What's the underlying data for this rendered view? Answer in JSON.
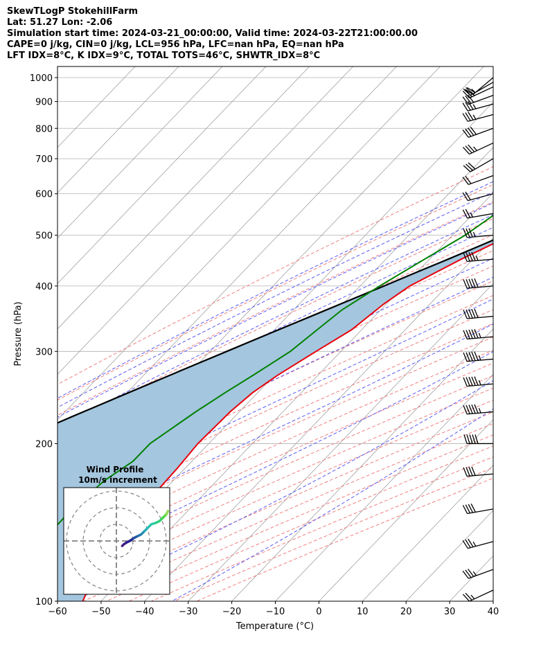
{
  "header": {
    "line1": "SkewTLogP StokehillFarm",
    "line2": "Lat: 51.27   Lon: -2.06",
    "line3": "Simulation start time: 2024-03-21_00:00:00, Valid time: 2024-03-22T21:00:00.00",
    "line4": "CAPE=0 j/kg, CIN=0 j/kg, LCL=956 hPa, LFC=nan hPa, EQ=nan hPa",
    "line5": "LFT IDX=8°C, K IDX=9°C, TOTAL TOTS=46°C, SHWTR_IDX=8°C"
  },
  "colors": {
    "temperature": "#e8000b",
    "dewpoint": "#008000",
    "parcel": "#000000",
    "cape_fill": "#a4c6de",
    "dry_adiabat": "#f08080",
    "moist_adiabat": "#5a5af5",
    "mixing_ratio": "#9b4dca",
    "isotherm": "#a0a0a0",
    "isobar": "#b0b0b0"
  },
  "chart_data": {
    "type": "line",
    "chart_kind": "skew-T log-P",
    "xlabel": "Temperature (°C)",
    "ylabel": "Pressure (hPa)",
    "xlim": [
      -60,
      40
    ],
    "ylim": [
      1050,
      100
    ],
    "y_scale": "log",
    "x_ticks": [
      "−60",
      "−50",
      "−40",
      "−30",
      "−20",
      "−10",
      "0",
      "10",
      "20",
      "30",
      "40"
    ],
    "x_tick_values": [
      -60,
      -50,
      -40,
      -30,
      -20,
      -10,
      0,
      10,
      20,
      30,
      40
    ],
    "y_ticks": [
      "100",
      "200",
      "300",
      "400",
      "500",
      "600",
      "700",
      "800",
      "900",
      "1000"
    ],
    "y_tick_values": [
      100,
      200,
      300,
      400,
      500,
      600,
      700,
      800,
      900,
      1000
    ],
    "grid": true,
    "series": [
      {
        "id": "temperature",
        "pressure": [
          1000,
          990,
          980,
          950,
          925,
          900,
          850,
          800,
          750,
          700,
          650,
          600,
          550,
          500,
          450,
          400,
          370,
          330,
          300,
          270,
          250,
          230,
          200,
          180,
          160,
          140,
          120,
          110,
          100
        ],
        "temperature": [
          7,
          7,
          5.9,
          3.2,
          1.3,
          -0.5,
          -3.9,
          -7.6,
          -11.8,
          -16.3,
          -20.5,
          -25.2,
          -30.8,
          -36.6,
          -42.7,
          -48.6,
          -50.6,
          -52.3,
          -55.7,
          -59.3,
          -61.2,
          -62.1,
          -62.5,
          -61.8,
          -61.4,
          -61.3,
          -60.1,
          -56.8,
          -54.2
        ]
      },
      {
        "id": "dewpoint",
        "pressure": [
          1000,
          990,
          975,
          960,
          940,
          920,
          900,
          870,
          840,
          800,
          750,
          700,
          650,
          600,
          560,
          550,
          500,
          450,
          400,
          360,
          330,
          300,
          270,
          250,
          230,
          200,
          185,
          170,
          150,
          130,
          110,
          100
        ],
        "temperature": [
          3.5,
          3,
          1,
          0,
          -0.3,
          -1,
          -2.7,
          -6,
          -8.1,
          -10.4,
          -13.7,
          -18.4,
          -28.2,
          -40.2,
          -44.8,
          -44.8,
          -47.1,
          -51.1,
          -55.5,
          -58.9,
          -60.2,
          -61.6,
          -64.9,
          -67.5,
          -70,
          -73.5,
          -73.5,
          -75.8,
          -77,
          -76.7,
          -73.3,
          -70.4
        ]
      },
      {
        "id": "parcel",
        "pressure": [
          1000,
          990,
          970,
          956,
          940,
          920,
          900,
          875,
          850,
          825,
          800,
          775,
          750,
          725,
          700,
          675,
          650,
          625,
          600,
          575,
          550,
          525,
          500,
          475,
          450,
          425,
          400,
          375,
          350,
          325,
          300,
          275,
          250,
          225,
          200,
          175,
          150,
          125,
          100
        ],
        "temperature": [
          7,
          5.4,
          4,
          3.3,
          2.3,
          1.1,
          -0.1,
          -1.7,
          -3.3,
          -5,
          -6.8,
          -8.7,
          -10.7,
          -12.8,
          -15,
          -17.4,
          -19.8,
          -22.4,
          -25.2,
          -28.1,
          -31.2,
          -34.5,
          -38,
          -41.7,
          -45.7,
          -50,
          -54.5,
          -59.4,
          -64.6,
          -70.2,
          -76.2,
          -82.7,
          -89.7,
          -97.4,
          -105.7,
          -115,
          -125.3,
          -137.1,
          -150.9
        ]
      }
    ],
    "wind_barbs": {
      "pressure": [
        1000,
        980,
        960,
        925,
        890,
        850,
        800,
        750,
        700,
        650,
        600,
        550,
        500,
        450,
        400,
        350,
        320,
        290,
        260,
        230,
        200,
        175,
        150,
        130,
        115,
        105
      ],
      "speed_kt": [
        20,
        25,
        25,
        30,
        35,
        35,
        40,
        35,
        30,
        20,
        20,
        25,
        35,
        45,
        50,
        50,
        55,
        55,
        55,
        55,
        50,
        40,
        40,
        35,
        35,
        25
      ],
      "direction_deg": [
        230,
        240,
        245,
        250,
        255,
        255,
        250,
        245,
        240,
        250,
        255,
        260,
        265,
        265,
        265,
        265,
        265,
        265,
        265,
        265,
        270,
        265,
        260,
        255,
        250,
        245
      ]
    }
  },
  "hodograph": {
    "title_line1": "Wind Profile",
    "title_line2": "10m/s increment",
    "rings_ms": [
      10,
      20,
      30
    ],
    "u": [
      3.5,
      4.5,
      6,
      8,
      9.5,
      11,
      13,
      15,
      17,
      19,
      21,
      24,
      26,
      27,
      28,
      29,
      30,
      30.5,
      31
    ],
    "v": [
      -3,
      -2,
      -1,
      0,
      1,
      2,
      3,
      4,
      6,
      8,
      10,
      11,
      12,
      13,
      14,
      15,
      16,
      17,
      18
    ]
  }
}
